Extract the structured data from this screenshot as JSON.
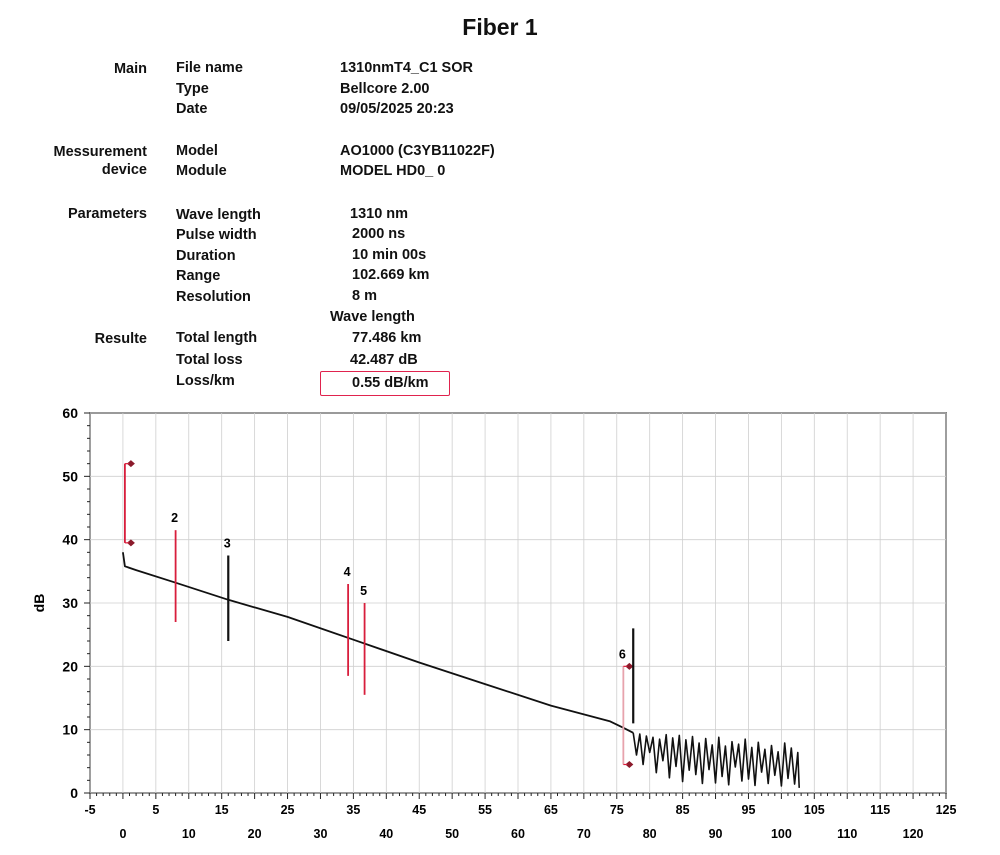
{
  "title": "Fiber 1",
  "sections": [
    {
      "label": "Main",
      "rows": [
        {
          "key": "File name",
          "value": "1310nmT4_C1 SOR"
        },
        {
          "key": "Type",
          "value": "Bellcore 2.00"
        },
        {
          "key": "Date",
          "value": "09/05/2025 20:23"
        }
      ]
    },
    {
      "label": "Messurement device",
      "rows": [
        {
          "key": "Model",
          "value": "AO1000 (C3YB11022F)"
        },
        {
          "key": "Module",
          "value": "MODEL HD0_ 0"
        }
      ]
    },
    {
      "label": "Parameters",
      "rows": [
        {
          "key": "Wave length",
          "value": "1310 nm"
        },
        {
          "key": "Pulse width",
          "value": "2000 ns"
        },
        {
          "key": "Duration",
          "value": "10 min 00s"
        },
        {
          "key": "Range",
          "value": "102.669 km"
        },
        {
          "key": "Resolution",
          "value": "8 m"
        }
      ]
    },
    {
      "label": "Resulte",
      "column_header": "Wave length",
      "rows": [
        {
          "key": "Total length",
          "value": "77.486 km"
        },
        {
          "key": "Total loss",
          "value": "42.487 dB"
        },
        {
          "key": "Loss/km",
          "value": "0.55 dB/km"
        }
      ]
    }
  ],
  "colors": {
    "trace": "#111111",
    "marker_red": "#d81e3c",
    "marker_dark": "#111111",
    "highlight_box": "#e0234e",
    "grid": "#cfcfcf",
    "event_end_marker": "#e7a3ad"
  },
  "chart_data": {
    "type": "line",
    "title": "",
    "xlabel": "",
    "ylabel": "dB",
    "xlim": [
      -5,
      125
    ],
    "ylim": [
      0,
      60
    ],
    "x_ticks_row1": [
      -5,
      5,
      15,
      25,
      35,
      45,
      55,
      65,
      75,
      85,
      95,
      105,
      115,
      125
    ],
    "x_ticks_row2": [
      0,
      10,
      20,
      30,
      40,
      50,
      60,
      70,
      80,
      90,
      100,
      110,
      120
    ],
    "y_ticks": [
      0,
      10,
      20,
      30,
      40,
      50,
      60
    ],
    "grid": true,
    "series": [
      {
        "x": [
          0,
          0.3,
          2,
          8,
          16,
          25,
          35,
          45,
          55,
          65,
          74,
          76,
          77.5
        ],
        "y": [
          38,
          35.8,
          35.2,
          33.2,
          30.5,
          27.8,
          24.2,
          20.6,
          17.2,
          13.8,
          11.3,
          10.3,
          9.5
        ]
      },
      {
        "x": [
          77.5,
          78,
          78.5,
          79,
          79.5,
          80,
          80.5,
          81,
          81.5,
          82,
          82.5,
          83,
          83.5,
          84,
          84.5,
          85,
          85.5,
          86,
          86.5,
          87,
          87.5,
          88,
          88.5,
          89,
          89.5,
          90,
          90.5,
          91,
          91.5,
          92,
          92.5,
          93,
          93.5,
          94,
          94.5,
          95,
          95.5,
          96,
          96.5,
          97,
          97.5,
          98,
          98.5,
          99,
          99.5,
          100,
          100.5,
          101,
          101.5,
          102,
          102.5,
          102.7
        ],
        "y": [
          9.5,
          6,
          9.3,
          4.5,
          9,
          6.4,
          8.8,
          3.2,
          8.5,
          5.1,
          9.2,
          2.4,
          8.7,
          4.2,
          9.1,
          1.8,
          8.4,
          3.6,
          8.9,
          2.9,
          7.9,
          1.5,
          8.6,
          3.7,
          7.6,
          1.6,
          8.8,
          2.6,
          7.4,
          1.3,
          8.1,
          4.1,
          7.7,
          1.9,
          8.5,
          2.2,
          7.2,
          1.2,
          8,
          3.3,
          6.9,
          1.5,
          7.5,
          2.8,
          6.5,
          1.1,
          7.9,
          2.3,
          7.1,
          1.4,
          6.4,
          0.8
        ]
      }
    ],
    "markers": [
      {
        "label": "",
        "x": 0.3,
        "y_top": 52,
        "y_bottom": 39.5,
        "color": "red",
        "end_markers": true
      },
      {
        "label": "2",
        "x": 8,
        "y_top": 41.5,
        "y_bottom": 27,
        "color": "red"
      },
      {
        "label": "3",
        "x": 16,
        "y_top": 37.5,
        "y_bottom": 24,
        "color": "dark"
      },
      {
        "label": "4",
        "x": 34.2,
        "y_top": 33,
        "y_bottom": 18.5,
        "color": "red"
      },
      {
        "label": "5",
        "x": 36.7,
        "y_top": 30,
        "y_bottom": 15.5,
        "color": "red"
      },
      {
        "label": "6",
        "x": 76,
        "y_top": 20,
        "y_bottom": 4.5,
        "color": "pink",
        "end_markers": true
      },
      {
        "label": "",
        "x": 77.5,
        "y_top": 26,
        "y_bottom": 11,
        "color": "dark"
      }
    ]
  }
}
